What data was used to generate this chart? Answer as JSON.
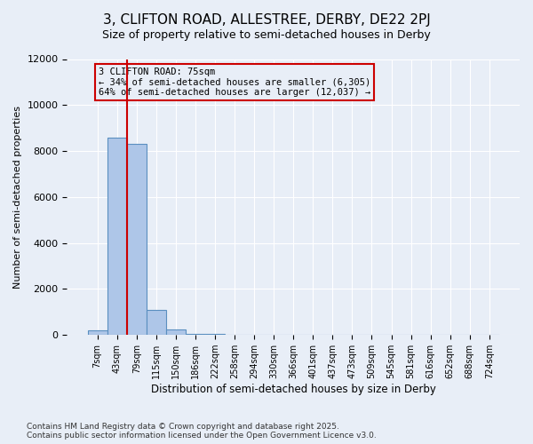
{
  "title_line1": "3, CLIFTON ROAD, ALLESTREE, DERBY, DE22 2PJ",
  "title_line2": "Size of property relative to semi-detached houses in Derby",
  "xlabel": "Distribution of semi-detached houses by size in Derby",
  "ylabel": "Number of semi-detached properties",
  "bin_labels": [
    "7sqm",
    "43sqm",
    "79sqm",
    "115sqm",
    "150sqm",
    "186sqm",
    "222sqm",
    "258sqm",
    "294sqm",
    "330sqm",
    "366sqm",
    "401sqm",
    "437sqm",
    "473sqm",
    "509sqm",
    "545sqm",
    "581sqm",
    "616sqm",
    "652sqm",
    "688sqm",
    "724sqm"
  ],
  "bar_heights": [
    200,
    8600,
    8300,
    1100,
    250,
    50,
    50,
    10,
    0,
    0,
    0,
    0,
    0,
    0,
    0,
    0,
    0,
    0,
    0,
    0,
    0
  ],
  "bar_color": "#aec6e8",
  "bar_edge_color": "#5a8fc0",
  "property_line_x": 1.5,
  "property_label": "3 CLIFTON ROAD: 75sqm",
  "annotation_line1": "← 34% of semi-detached houses are smaller (6,305)",
  "annotation_line2": "64% of semi-detached houses are larger (12,037) →",
  "property_line_color": "#cc0000",
  "annotation_box_color": "#cc0000",
  "ylim": [
    0,
    12000
  ],
  "yticks": [
    0,
    2000,
    4000,
    6000,
    8000,
    10000,
    12000
  ],
  "background_color": "#e8eef7",
  "footer_line1": "Contains HM Land Registry data © Crown copyright and database right 2025.",
  "footer_line2": "Contains public sector information licensed under the Open Government Licence v3.0."
}
